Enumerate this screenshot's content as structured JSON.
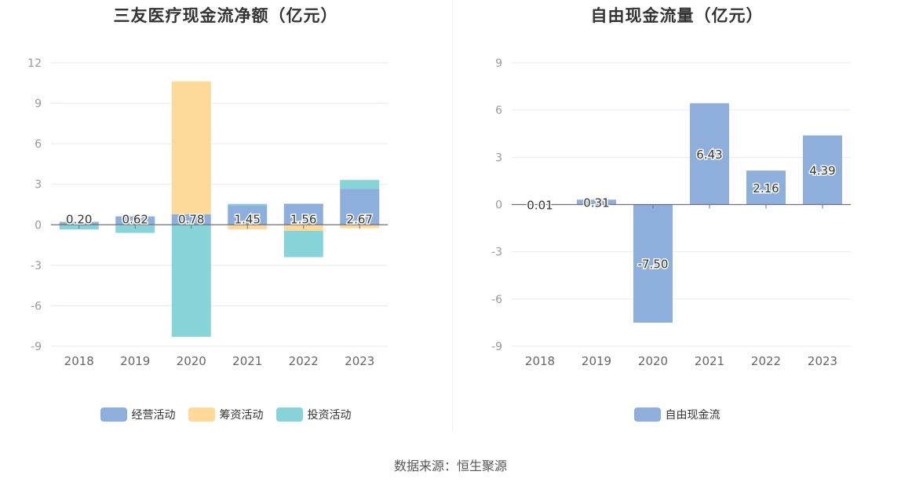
{
  "source_label": "数据来源：恒生聚源",
  "colors": {
    "operating": "#8eaedc",
    "financing": "#ffd99a",
    "investing": "#86d4d8",
    "free_cash_flow": "#8eaedc",
    "grid": "#e6e9f0",
    "axis": "#6e7079"
  },
  "chart_data": [
    {
      "type": "bar",
      "stacked": true,
      "title": "三友医疗现金流净额（亿元）",
      "categories": [
        "2018",
        "2019",
        "2020",
        "2021",
        "2022",
        "2023"
      ],
      "series": [
        {
          "name": "经营活动",
          "values": [
            0.2,
            0.62,
            0.78,
            1.45,
            1.56,
            2.67
          ]
        },
        {
          "name": "筹资活动",
          "values": [
            0.05,
            -0.05,
            9.85,
            -0.35,
            -0.45,
            -0.25
          ]
        },
        {
          "name": "投资活动",
          "values": [
            -0.35,
            -0.55,
            -8.3,
            0.1,
            -1.95,
            0.65
          ]
        }
      ],
      "data_labels": [
        "0.20",
        "0.62",
        "0.78",
        "1.45",
        "1.56",
        "2.67"
      ],
      "yticks": [
        "12",
        "9",
        "6",
        "3",
        "0",
        "-3",
        "-6",
        "-9"
      ],
      "ylim": [
        -9,
        12
      ],
      "grid": true,
      "legend_position": "bottom"
    },
    {
      "type": "bar",
      "title": "自由现金流量（亿元）",
      "categories": [
        "2018",
        "2019",
        "2020",
        "2021",
        "2022",
        "2023"
      ],
      "series": [
        {
          "name": "自由现金流",
          "values": [
            0.01,
            0.31,
            -7.5,
            6.43,
            2.16,
            4.39
          ]
        }
      ],
      "data_labels": [
        "0.01",
        "0.31",
        "-7.50",
        "6.43",
        "2.16",
        "4.39"
      ],
      "yticks": [
        "9",
        "6",
        "3",
        "0",
        "-3",
        "-6",
        "-9"
      ],
      "ylim": [
        -9,
        9
      ],
      "grid": true,
      "legend_position": "bottom"
    }
  ]
}
